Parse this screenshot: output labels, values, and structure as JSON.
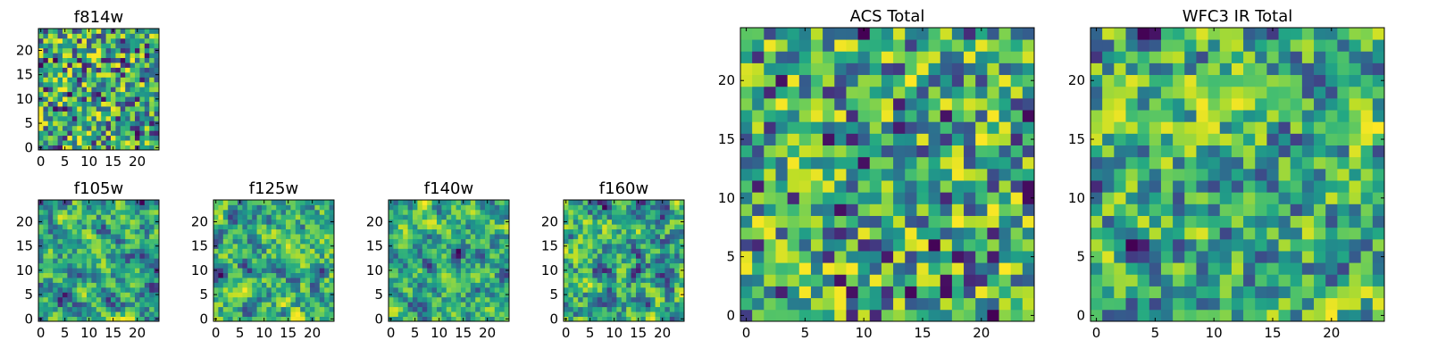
{
  "colormap": "viridis",
  "colors": {
    "low": "#440154",
    "mid": "#21918c",
    "high": "#fde725",
    "frame": "#000000",
    "background": "#ffffff"
  },
  "chart_data": [
    {
      "type": "heatmap",
      "title": "f814w",
      "xlim": [
        0,
        24
      ],
      "ylim": [
        0,
        24
      ],
      "xticks": [
        0,
        5,
        10,
        15,
        20
      ],
      "yticks": [
        0,
        5,
        10,
        15,
        20
      ],
      "tick_labels": [
        "0",
        "5",
        "10",
        "15",
        "20"
      ],
      "grid": false,
      "grid_size": [
        25,
        25
      ],
      "seed": 814,
      "smooth": 0,
      "note_values": "per-pixel values are random noise on a viridis scale (not individually readable)"
    },
    {
      "type": "heatmap",
      "title": "f105w",
      "xlim": [
        0,
        24
      ],
      "ylim": [
        0,
        24
      ],
      "xticks": [
        0,
        5,
        10,
        15,
        20
      ],
      "yticks": [
        0,
        5,
        10,
        15,
        20
      ],
      "tick_labels": [
        "0",
        "5",
        "10",
        "15",
        "20"
      ],
      "grid": false,
      "grid_size": [
        25,
        25
      ],
      "seed": 105,
      "smooth": 2
    },
    {
      "type": "heatmap",
      "title": "f125w",
      "xlim": [
        0,
        24
      ],
      "ylim": [
        0,
        24
      ],
      "xticks": [
        0,
        5,
        10,
        15,
        20
      ],
      "yticks": [
        0,
        5,
        10,
        15,
        20
      ],
      "tick_labels": [
        "0",
        "5",
        "10",
        "15",
        "20"
      ],
      "grid": false,
      "grid_size": [
        25,
        25
      ],
      "seed": 125,
      "smooth": 2
    },
    {
      "type": "heatmap",
      "title": "f140w",
      "xlim": [
        0,
        24
      ],
      "ylim": [
        0,
        24
      ],
      "xticks": [
        0,
        5,
        10,
        15,
        20
      ],
      "yticks": [
        0,
        5,
        10,
        15,
        20
      ],
      "tick_labels": [
        "0",
        "5",
        "10",
        "15",
        "20"
      ],
      "grid": false,
      "grid_size": [
        25,
        25
      ],
      "seed": 140,
      "smooth": 2
    },
    {
      "type": "heatmap",
      "title": "f160w",
      "xlim": [
        0,
        24
      ],
      "ylim": [
        0,
        24
      ],
      "xticks": [
        0,
        5,
        10,
        15,
        20
      ],
      "yticks": [
        0,
        5,
        10,
        15,
        20
      ],
      "tick_labels": [
        "0",
        "5",
        "10",
        "15",
        "20"
      ],
      "grid": false,
      "grid_size": [
        25,
        25
      ],
      "seed": 160,
      "smooth": 2
    },
    {
      "type": "heatmap",
      "title": "ACS Total",
      "xlim": [
        0,
        24
      ],
      "ylim": [
        0,
        24
      ],
      "xticks": [
        0,
        5,
        10,
        15,
        20
      ],
      "yticks": [
        0,
        5,
        10,
        15,
        20
      ],
      "tick_labels": [
        "0",
        "5",
        "10",
        "15",
        "20"
      ],
      "grid": false,
      "grid_size": [
        25,
        25
      ],
      "seed": 901,
      "smooth": 0
    },
    {
      "type": "heatmap",
      "title": "WFC3 IR Total",
      "xlim": [
        0,
        24
      ],
      "ylim": [
        0,
        24
      ],
      "xticks": [
        0,
        5,
        10,
        15,
        20
      ],
      "yticks": [
        0,
        5,
        10,
        15,
        20
      ],
      "tick_labels": [
        "0",
        "5",
        "10",
        "15",
        "20"
      ],
      "grid": false,
      "grid_size": [
        25,
        25
      ],
      "seed": 777,
      "smooth": 1
    }
  ]
}
